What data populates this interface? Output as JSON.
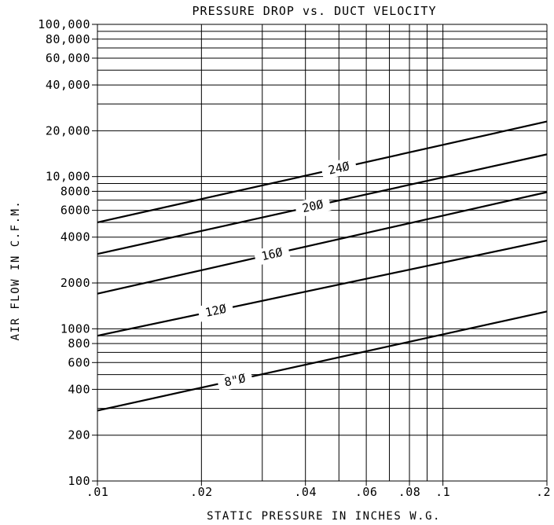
{
  "chart_data": {
    "type": "line",
    "title": "PRESSURE DROP vs. DUCT VELOCITY",
    "xlabel": "STATIC PRESSURE IN INCHES W.G.",
    "ylabel": "AIR FLOW IN C.F.M.",
    "x_scale": "log",
    "y_scale": "log",
    "xlim": [
      0.01,
      0.2
    ],
    "ylim": [
      100,
      100000
    ],
    "grid": true,
    "x_ticks": [
      {
        "value": 0.01,
        "label": ".01"
      },
      {
        "value": 0.02,
        "label": ".02"
      },
      {
        "value": 0.04,
        "label": ".04"
      },
      {
        "value": 0.06,
        "label": ".06"
      },
      {
        "value": 0.08,
        "label": ".08"
      },
      {
        "value": 0.1,
        "label": ".1"
      },
      {
        "value": 0.2,
        "label": ".2"
      }
    ],
    "x_grid": [
      0.01,
      0.02,
      0.03,
      0.04,
      0.05,
      0.06,
      0.07,
      0.08,
      0.09,
      0.1,
      0.2
    ],
    "y_ticks": [
      {
        "value": 100,
        "label": "100"
      },
      {
        "value": 200,
        "label": "200"
      },
      {
        "value": 400,
        "label": "400"
      },
      {
        "value": 600,
        "label": "600"
      },
      {
        "value": 800,
        "label": "800"
      },
      {
        "value": 1000,
        "label": "1000"
      },
      {
        "value": 2000,
        "label": "2000"
      },
      {
        "value": 4000,
        "label": "4000"
      },
      {
        "value": 6000,
        "label": "6000"
      },
      {
        "value": 8000,
        "label": "8000"
      },
      {
        "value": 10000,
        "label": "10,000"
      },
      {
        "value": 20000,
        "label": "20,000"
      },
      {
        "value": 40000,
        "label": "40,000"
      },
      {
        "value": 60000,
        "label": "60,000"
      },
      {
        "value": 80000,
        "label": "80,000"
      },
      {
        "value": 100000,
        "label": "100,000"
      }
    ],
    "y_grid": [
      100,
      200,
      300,
      400,
      500,
      600,
      700,
      800,
      900,
      1000,
      2000,
      3000,
      4000,
      5000,
      6000,
      7000,
      8000,
      9000,
      10000,
      20000,
      30000,
      40000,
      50000,
      60000,
      70000,
      80000,
      90000,
      100000
    ],
    "series": [
      {
        "name": "8\"Ø",
        "x": [
          0.01,
          0.2
        ],
        "y": [
          290,
          1300
        ],
        "label_x": 0.025
      },
      {
        "name": "12Ø",
        "x": [
          0.01,
          0.2
        ],
        "y": [
          900,
          3800
        ],
        "label_x": 0.022
      },
      {
        "name": "16Ø",
        "x": [
          0.01,
          0.2
        ],
        "y": [
          1700,
          7900
        ],
        "label_x": 0.032
      },
      {
        "name": "20Ø",
        "x": [
          0.01,
          0.2
        ],
        "y": [
          3100,
          14000
        ],
        "label_x": 0.042
      },
      {
        "name": "24Ø",
        "x": [
          0.01,
          0.2
        ],
        "y": [
          5000,
          23000
        ],
        "label_x": 0.05
      }
    ]
  }
}
